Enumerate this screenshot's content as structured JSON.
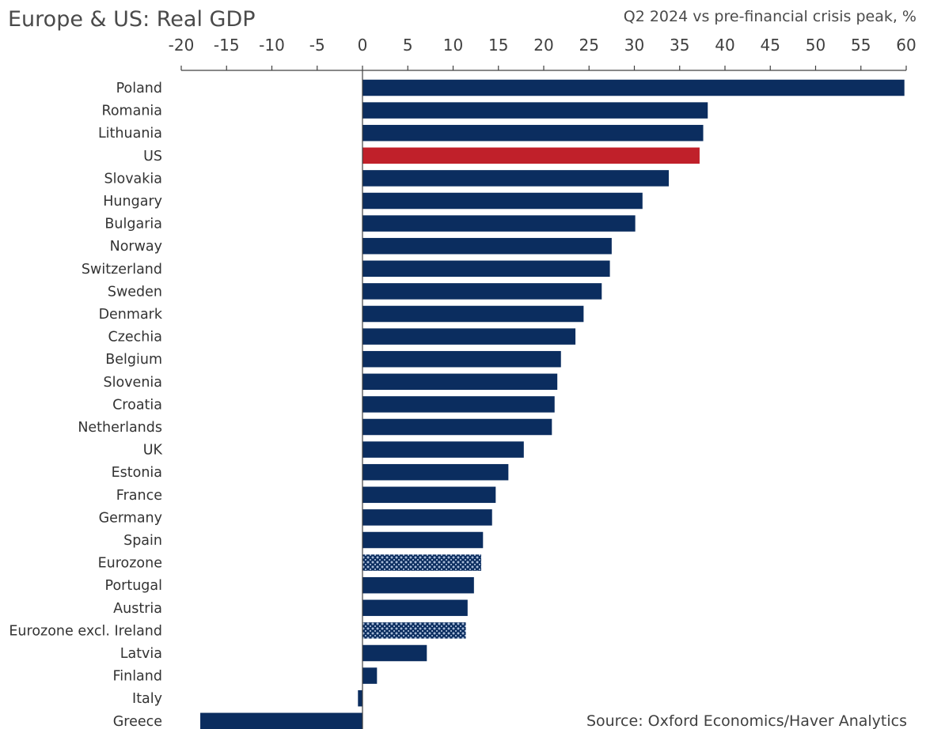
{
  "colors": {
    "bar": "#0b2d5f",
    "highlight": "#c0202a",
    "axis": "#404040",
    "pattern_light": "#a9bcd8"
  },
  "chart_data": {
    "type": "bar",
    "orientation": "horizontal",
    "title": "Europe & US: Real GDP",
    "subtitle": "Q2 2024 vs pre-financial crisis peak, %",
    "source": "Source: Oxford Economics/Haver Analytics",
    "xlim": [
      -20,
      60
    ],
    "x_ticks": [
      -20,
      -15,
      -10,
      -5,
      0,
      5,
      10,
      15,
      20,
      25,
      30,
      35,
      40,
      45,
      50,
      55,
      60
    ],
    "axis_position": "top",
    "grid": false,
    "categories": [
      "Poland",
      "Romania",
      "Lithuania",
      "US",
      "Slovakia",
      "Hungary",
      "Bulgaria",
      "Norway",
      "Switzerland",
      "Sweden",
      "Denmark",
      "Czechia",
      "Belgium",
      "Slovenia",
      "Croatia",
      "Netherlands",
      "UK",
      "Estonia",
      "France",
      "Germany",
      "Spain",
      "Eurozone",
      "Portugal",
      "Austria",
      "Eurozone excl. Ireland",
      "Latvia",
      "Finland",
      "Italy",
      "Greece"
    ],
    "values": [
      59.8,
      38.1,
      37.6,
      37.2,
      33.8,
      30.9,
      30.1,
      27.5,
      27.3,
      26.4,
      24.4,
      23.5,
      21.9,
      21.5,
      21.2,
      20.9,
      17.8,
      16.1,
      14.7,
      14.3,
      13.3,
      13.1,
      12.3,
      11.6,
      11.4,
      7.1,
      1.6,
      -0.5,
      -17.9
    ],
    "styles": [
      "solid",
      "solid",
      "solid",
      "highlight",
      "solid",
      "solid",
      "solid",
      "solid",
      "solid",
      "solid",
      "solid",
      "solid",
      "solid",
      "solid",
      "solid",
      "solid",
      "solid",
      "solid",
      "solid",
      "solid",
      "solid",
      "pattern",
      "solid",
      "solid",
      "pattern",
      "solid",
      "solid",
      "solid",
      "solid"
    ]
  }
}
